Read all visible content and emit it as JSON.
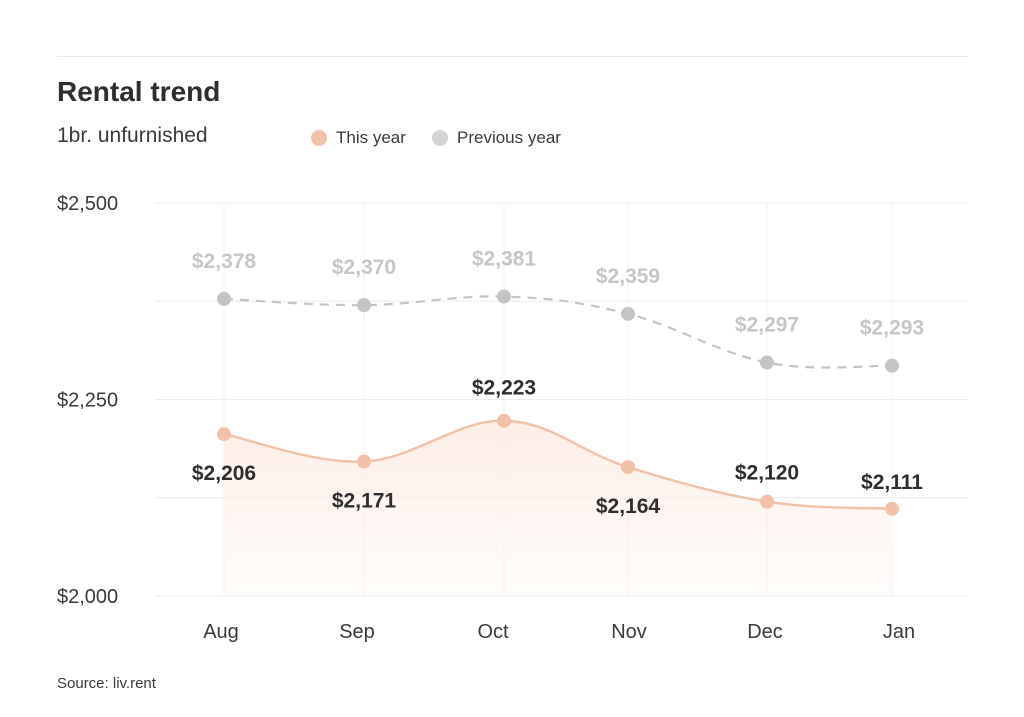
{
  "title": "Rental trend",
  "subtitle": "1br. unfurnished",
  "source": "Source: liv.rent",
  "colors": {
    "this_year": "#f2c2a8",
    "previous_year": "#c4c4c4",
    "fill": "#fdeee6"
  },
  "chart_data": {
    "type": "line",
    "title": "Rental trend",
    "subtitle": "1br. unfurnished",
    "categories": [
      "Aug",
      "Sep",
      "Oct",
      "Nov",
      "Dec",
      "Jan"
    ],
    "series": [
      {
        "name": "This year",
        "values": [
          2206,
          2171,
          2223,
          2164,
          2120,
          2111
        ],
        "labels": [
          "$2,206",
          "$2,171",
          "$2,223",
          "$2,164",
          "$2,120",
          "$2,111"
        ]
      },
      {
        "name": "Previous year",
        "values": [
          2378,
          2370,
          2381,
          2359,
          2297,
          2293
        ],
        "labels": [
          "$2,378",
          "$2,370",
          "$2,381",
          "$2,359",
          "$2,297",
          "$2,293"
        ]
      }
    ],
    "y_ticks": [
      2000,
      2250,
      2500
    ],
    "y_tick_labels": [
      "$2,000",
      "$2,250",
      "$2,500"
    ],
    "ylim": [
      2000,
      2500
    ],
    "grid": true,
    "legend": "top"
  }
}
